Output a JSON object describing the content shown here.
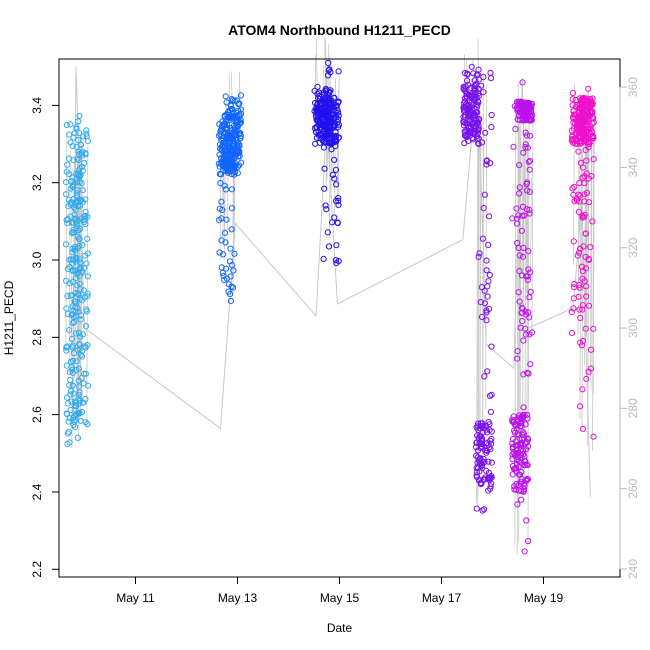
{
  "chart_data": {
    "type": "scatter",
    "title": "ATOM4 Northbound H1211_PECD",
    "xlabel": "Date",
    "ylabel": "H1211_PECD",
    "x_range": [
      "2011-05-09T12:00",
      "2011-05-20T12:00"
    ],
    "x_ticks": [
      {
        "date": "2011-05-11",
        "label": "May 11"
      },
      {
        "date": "2011-05-13",
        "label": "May 13"
      },
      {
        "date": "2011-05-15",
        "label": "May 15"
      },
      {
        "date": "2011-05-17",
        "label": "May 17"
      },
      {
        "date": "2011-05-19",
        "label": "May 19"
      }
    ],
    "ylim": [
      2.18,
      3.52
    ],
    "y_ticks": [
      2.2,
      2.4,
      2.6,
      2.8,
      3.0,
      3.2,
      3.4
    ],
    "y2lim": [
      238,
      367
    ],
    "y2_ticks": [
      240,
      260,
      280,
      300,
      320,
      340,
      360
    ],
    "grid": false,
    "colors": {
      "flight1": "#33aaee",
      "flight2": "#1166ff",
      "flight3": "#2211ee",
      "flight4": "#7711ee",
      "flight5": "#bb11ee",
      "flight6": "#ee11cc",
      "secondary_line": "#c8c8c8",
      "secondary_axis": "#bbbbbb"
    },
    "flights": [
      {
        "color_key": "flight1",
        "columns": [
          {
            "x": "2011-05-09T19:00",
            "ymin": 2.49,
            "ymax": 3.39,
            "dense_min": 2.55,
            "dense_max": 3.33
          },
          {
            "x": "2011-05-09T22:00",
            "ymin": 2.55,
            "ymax": 3.37,
            "dense_min": 2.6,
            "dense_max": 3.35
          }
        ]
      },
      {
        "color_key": "flight2",
        "columns": [
          {
            "x": "2011-05-12T19:00",
            "ymin": 2.88,
            "ymax": 3.39,
            "dense_min": 3.22,
            "dense_max": 3.38
          },
          {
            "x": "2011-05-12T22:00",
            "ymin": 3.22,
            "ymax": 3.43,
            "dense_min": 3.24,
            "dense_max": 3.38
          }
        ]
      },
      {
        "color_key": "flight3",
        "columns": [
          {
            "x": "2011-05-14T16:00",
            "ymin": 3.3,
            "ymax": 3.45,
            "dense_min": 3.32,
            "dense_max": 3.42
          },
          {
            "x": "2011-05-14T20:00",
            "ymin": 2.99,
            "ymax": 3.51,
            "dense_min": 3.3,
            "dense_max": 3.42
          }
        ]
      },
      {
        "color_key": "flight4",
        "columns": [
          {
            "x": "2011-05-17T14:00",
            "ymin": 3.3,
            "ymax": 3.5,
            "dense_min": 3.32,
            "dense_max": 3.45
          },
          {
            "x": "2011-05-17T20:00",
            "ymin": 2.33,
            "ymax": 3.49,
            "dense_min": 2.42,
            "dense_max": 2.58
          }
        ]
      },
      {
        "color_key": "flight5",
        "columns": [
          {
            "x": "2011-05-18T13:00",
            "ymin": 2.24,
            "ymax": 3.46,
            "dense_min": 2.4,
            "dense_max": 2.6
          },
          {
            "x": "2011-05-18T15:00",
            "ymin": 2.7,
            "ymax": 3.41,
            "dense_min": 3.36,
            "dense_max": 3.41
          }
        ]
      },
      {
        "color_key": "flight6",
        "columns": [
          {
            "x": "2011-05-19T17:00",
            "ymin": 2.8,
            "ymax": 3.46,
            "dense_min": 3.3,
            "dense_max": 3.42
          },
          {
            "x": "2011-05-19T20:00",
            "ymin": 2.49,
            "ymax": 3.45,
            "dense_min": 3.3,
            "dense_max": 3.42
          }
        ]
      }
    ],
    "secondary_line": [
      {
        "x": "2011-05-09T18:00",
        "y": 270
      },
      {
        "x": "2011-05-09T20:00",
        "y": 365
      },
      {
        "x": "2011-05-10T00:00",
        "y": 300
      },
      {
        "x": "2011-05-12T16:00",
        "y": 275
      },
      {
        "x": "2011-05-12T23:00",
        "y": 326
      },
      {
        "x": "2011-05-14T13:00",
        "y": 303
      },
      {
        "x": "2011-05-14T18:00",
        "y": 352
      },
      {
        "x": "2011-05-14T23:00",
        "y": 306
      },
      {
        "x": "2011-05-17T10:00",
        "y": 322
      },
      {
        "x": "2011-05-17T17:00",
        "y": 364
      },
      {
        "x": "2011-05-17T21:00",
        "y": 296
      },
      {
        "x": "2011-05-18T10:00",
        "y": 290
      },
      {
        "x": "2011-05-18T14:00",
        "y": 362
      },
      {
        "x": "2011-05-18T17:00",
        "y": 300
      },
      {
        "x": "2011-05-19T14:00",
        "y": 305
      },
      {
        "x": "2011-05-19T18:00",
        "y": 332
      },
      {
        "x": "2011-05-19T22:00",
        "y": 258
      }
    ]
  }
}
